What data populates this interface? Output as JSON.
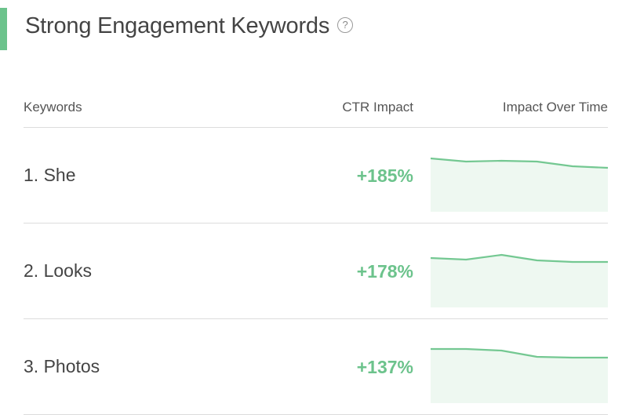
{
  "header": {
    "title": "Strong Engagement Keywords",
    "help_glyph": "?"
  },
  "table": {
    "columns": [
      "Keywords",
      "CTR Impact",
      "Impact Over Time"
    ],
    "rows": [
      {
        "keyword": "1. She",
        "ctr_impact": "+185%",
        "trend": [
          4,
          8,
          7,
          8,
          14,
          16
        ]
      },
      {
        "keyword": "2. Looks",
        "ctr_impact": "+178%",
        "trend": [
          9,
          11,
          5,
          12,
          14,
          14
        ]
      },
      {
        "keyword": "3. Photos",
        "ctr_impact": "+137%",
        "trend": [
          3,
          3,
          5,
          13,
          14,
          14
        ]
      }
    ]
  },
  "colors": {
    "accent": "#6cc38c",
    "spark_fill": "#eef8f1",
    "spark_line": "#74c892"
  }
}
